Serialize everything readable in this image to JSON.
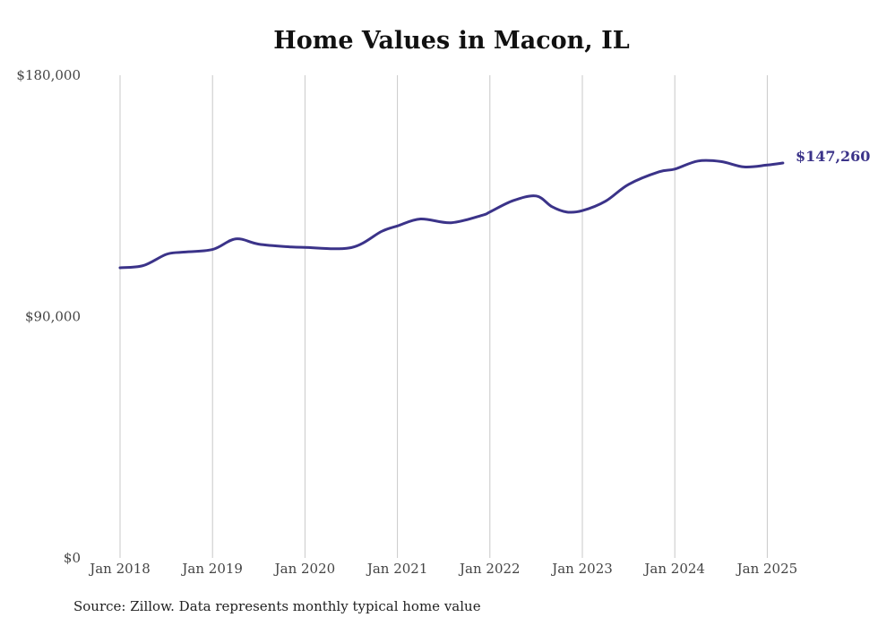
{
  "chart_data": {
    "type": "line",
    "title": "Home Values in Macon, IL",
    "xlabel": "",
    "ylabel": "",
    "ylim": [
      0,
      180000
    ],
    "y_ticks": [
      {
        "value": 0,
        "label": "$0"
      },
      {
        "value": 90000,
        "label": "$90,000"
      },
      {
        "value": 180000,
        "label": "$180,000"
      }
    ],
    "x_ticks": [
      {
        "value": 2018,
        "label": "Jan 2018"
      },
      {
        "value": 2019,
        "label": "Jan 2019"
      },
      {
        "value": 2020,
        "label": "Jan 2020"
      },
      {
        "value": 2021,
        "label": "Jan 2021"
      },
      {
        "value": 2022,
        "label": "Jan 2022"
      },
      {
        "value": 2023,
        "label": "Jan 2023"
      },
      {
        "value": 2024,
        "label": "Jan 2024"
      },
      {
        "value": 2025,
        "label": "Jan 2025"
      }
    ],
    "grid": "vertical",
    "line_color": "#3b3389",
    "end_label": "$147,260",
    "series": [
      {
        "x": [
          2018.0,
          2018.25,
          2018.5,
          2018.67,
          2019.0,
          2019.25,
          2019.5,
          2019.83,
          2020.0,
          2020.5,
          2020.83,
          2021.0,
          2021.25,
          2021.58,
          2021.92,
          2022.0,
          2022.25,
          2022.5,
          2022.67,
          2022.83,
          2023.0,
          2023.25,
          2023.5,
          2023.83,
          2024.0,
          2024.25,
          2024.5,
          2024.75,
          2025.0,
          2025.17
        ],
        "y": [
          108200,
          109000,
          113200,
          114000,
          115000,
          119000,
          117000,
          116000,
          115800,
          115700,
          121800,
          123800,
          126400,
          125000,
          127800,
          129000,
          133200,
          135000,
          131000,
          129000,
          129500,
          133000,
          139300,
          144000,
          145000,
          148000,
          147800,
          145800,
          146500,
          147260
        ]
      }
    ]
  },
  "source_note": "Source: Zillow. Data represents monthly typical home value"
}
